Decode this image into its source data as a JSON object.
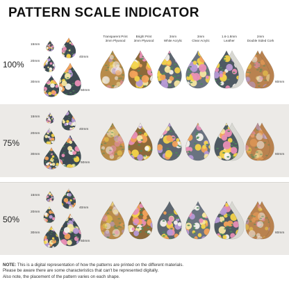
{
  "title": "PATTERN SCALE INDICATOR",
  "materials": [
    {
      "line1": "Transparent Print",
      "line2": "3mm Plywood",
      "fill": "#b88b4a"
    },
    {
      "line1": "Bright Print",
      "line2": "3mm Plywood",
      "fill": "#8d6a3a"
    },
    {
      "line1": "3mm",
      "line2": "White Acrylic",
      "fill": "#5d6670"
    },
    {
      "line1": "3mm",
      "line2": "Clear Acrylic",
      "fill": "#6a7380"
    },
    {
      "line1": "1.6-1.8mm",
      "line2": "Leather",
      "fill": "#4f5a63"
    },
    {
      "line1": "2mm",
      "line2": "Double Sided Cork",
      "fill": "#b9824f"
    }
  ],
  "scales": [
    {
      "label": "100%"
    },
    {
      "label": "75%"
    },
    {
      "label": "50%"
    }
  ],
  "sizes": {
    "small": "15mm",
    "medium": "20mm",
    "large": "30mm",
    "xl": "40mm",
    "xxl": "50mm",
    "material": "60mm"
  },
  "note": {
    "bold": "NOTE:",
    "text1": " This is a digital representation of how the patterns are printed on the different materials.",
    "text2": "Please be aware there are some characteristics that can't be represented digitally.",
    "text3": "Also note, the placement of the pattern varies on each shape."
  },
  "colors": {
    "band": "#eceae7",
    "pattern_base": "#3d4a52",
    "cork": "#b9824f",
    "leather_back": "#d8d8d2"
  }
}
